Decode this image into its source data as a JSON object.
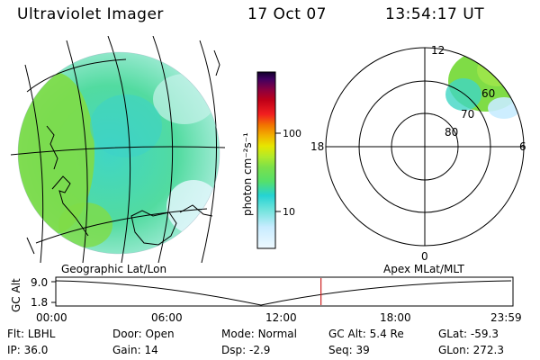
{
  "header": {
    "instrument": "Ultraviolet Imager",
    "date": "17 Oct 07",
    "time": "13:54:17 UT"
  },
  "colorbar": {
    "unit_label": "photon cm⁻²s⁻¹",
    "ticks": [
      "100",
      "10"
    ],
    "scale": "log",
    "colors": [
      "#e7f7ff",
      "#c8ecff",
      "#6fe3dc",
      "#25d3d3",
      "#55e06a",
      "#7be04a",
      "#b2ea2a",
      "#e6e600",
      "#f2b000",
      "#f27200",
      "#f21f1f",
      "#c00018",
      "#8a0040",
      "#400060",
      "#10002a"
    ]
  },
  "geo_panel": {
    "label": "Geographic Lat/Lon"
  },
  "apex_panel": {
    "label": "Apex MLat/MLT",
    "mlt_labels": {
      "top": "12",
      "left": "18",
      "right": "6",
      "bottom": "0"
    },
    "lat_labels": [
      "80",
      "70",
      "60"
    ]
  },
  "timeline": {
    "axis_label": "GC Alt",
    "y_labels": [
      "9.0",
      "1.8"
    ],
    "x_labels": [
      "00:00",
      "06:00",
      "12:00",
      "18:00",
      "23:59"
    ],
    "current_time_fraction": 0.58,
    "current_marker_color": "#cc2222"
  },
  "footer": {
    "row1": [
      {
        "label": "Flt:",
        "value": "LBHL"
      },
      {
        "label": "Door:",
        "value": "Open"
      },
      {
        "label": "Mode:",
        "value": "Normal"
      },
      {
        "label": "GC Alt:",
        "value": "5.4 Re"
      },
      {
        "label": "GLat:",
        "value": "-59.3"
      }
    ],
    "row2": [
      {
        "label": "IP:",
        "value": "36.0"
      },
      {
        "label": "Gain:",
        "value": "14"
      },
      {
        "label": "Dsp:",
        "value": "-2.9"
      },
      {
        "label": "Seq:",
        "value": "39"
      },
      {
        "label": "GLon:",
        "value": "272.3"
      }
    ]
  }
}
